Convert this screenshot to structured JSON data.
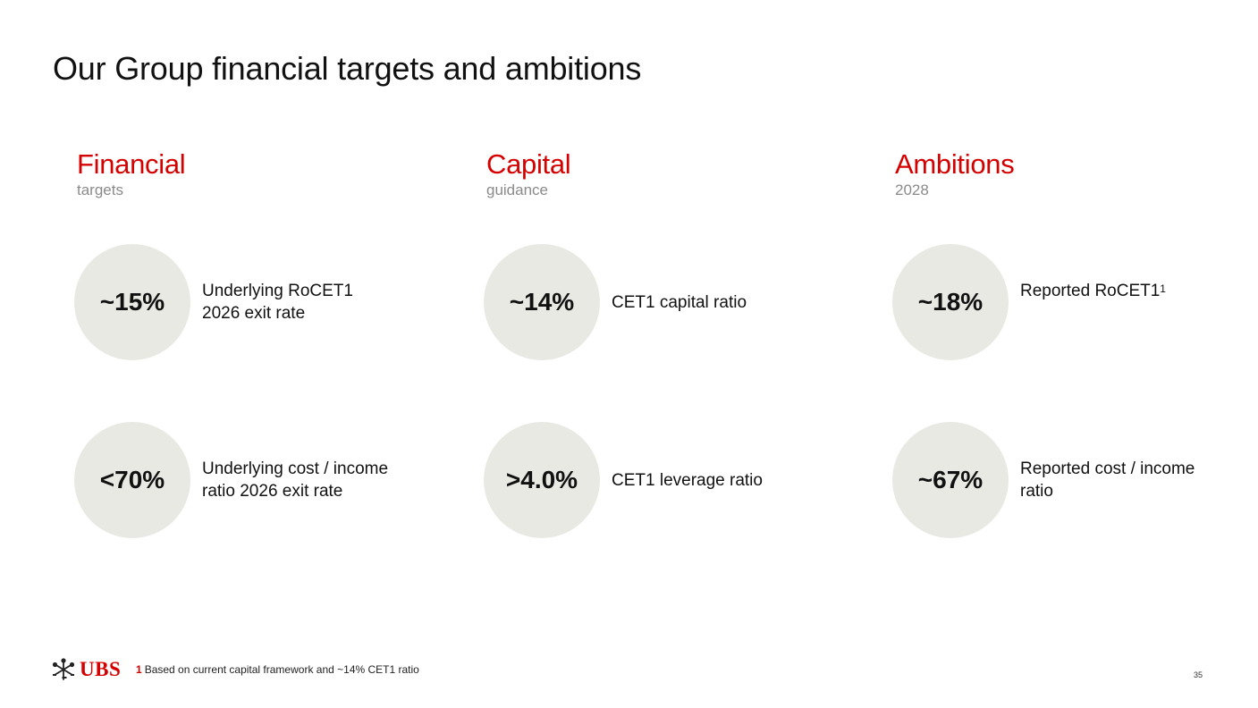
{
  "title": "Our Group financial targets and ambitions",
  "columns": [
    {
      "heading": "Financial",
      "subheading": "targets",
      "metrics": [
        {
          "value": "~15%",
          "label_lines": [
            "Underlying RoCET1",
            "2026 exit rate"
          ]
        },
        {
          "value": "<70%",
          "label_lines": [
            "Underlying cost / income",
            "ratio 2026 exit rate"
          ]
        }
      ]
    },
    {
      "heading": "Capital",
      "subheading": "guidance",
      "metrics": [
        {
          "value": "~14%",
          "label_lines": [
            "CET1 capital ratio"
          ]
        },
        {
          "value": ">4.0%",
          "label_lines": [
            "CET1 leverage ratio"
          ]
        }
      ]
    },
    {
      "heading": "Ambitions",
      "subheading": "2028",
      "metrics": [
        {
          "value": "~18%",
          "label_lines": [
            "Reported RoCET1"
          ],
          "footnote_marker": "1"
        },
        {
          "value": "~67%",
          "label_lines": [
            "Reported cost / income",
            "ratio"
          ]
        }
      ]
    }
  ],
  "footer": {
    "logo_text": "UBS",
    "footnote_number": "1",
    "footnote_text": "Based on current capital framework and ~14% CET1 ratio",
    "page_number": "35"
  },
  "colors": {
    "accent": "#d50000",
    "circle": "#e9e9e4",
    "subheading": "#8a8a8a"
  }
}
